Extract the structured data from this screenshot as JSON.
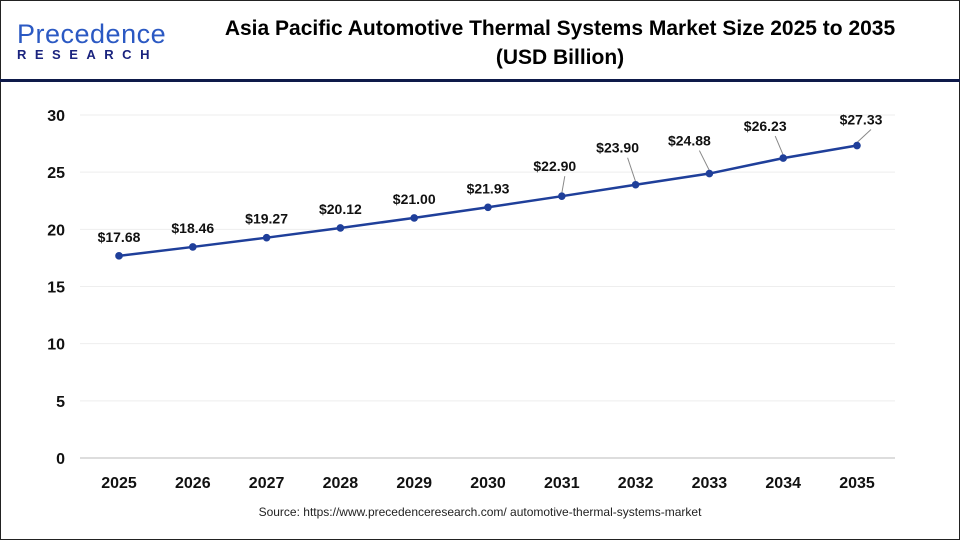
{
  "brand": {
    "logo_line1": "Precedence",
    "logo_line2": "RESEARCH"
  },
  "title_line1": "Asia Pacific Automotive Thermal Systems Market Size 2025 to 2035",
  "title_line2": "(USD Billion)",
  "source": "Source: https://www.precedenceresearch.com/ automotive-thermal-systems-market",
  "colors": {
    "line": "#1f3f9a",
    "marker": "#1f3f9a",
    "header_rule": "#0e1a4a"
  },
  "chart_data": {
    "type": "line",
    "title": "Asia Pacific Automotive Thermal Systems Market Size 2025 to 2035 (USD Billion)",
    "categories": [
      "2025",
      "2026",
      "2027",
      "2028",
      "2029",
      "2030",
      "2031",
      "2032",
      "2033",
      "2034",
      "2035"
    ],
    "values": [
      17.68,
      18.46,
      19.27,
      20.12,
      21.0,
      21.93,
      22.9,
      23.9,
      24.88,
      26.23,
      27.33
    ],
    "data_labels": [
      "$17.68",
      "$18.46",
      "$19.27",
      "$20.12",
      "$21.00",
      "$21.93",
      "$22.90",
      "$23.90",
      "$24.88",
      "$26.23",
      "$27.33"
    ],
    "yticks": [
      "0",
      "5",
      "10",
      "15",
      "20",
      "25",
      "30"
    ],
    "ylim": [
      0,
      30
    ],
    "grid": "horizontal",
    "xlabel": "",
    "ylabel": ""
  }
}
